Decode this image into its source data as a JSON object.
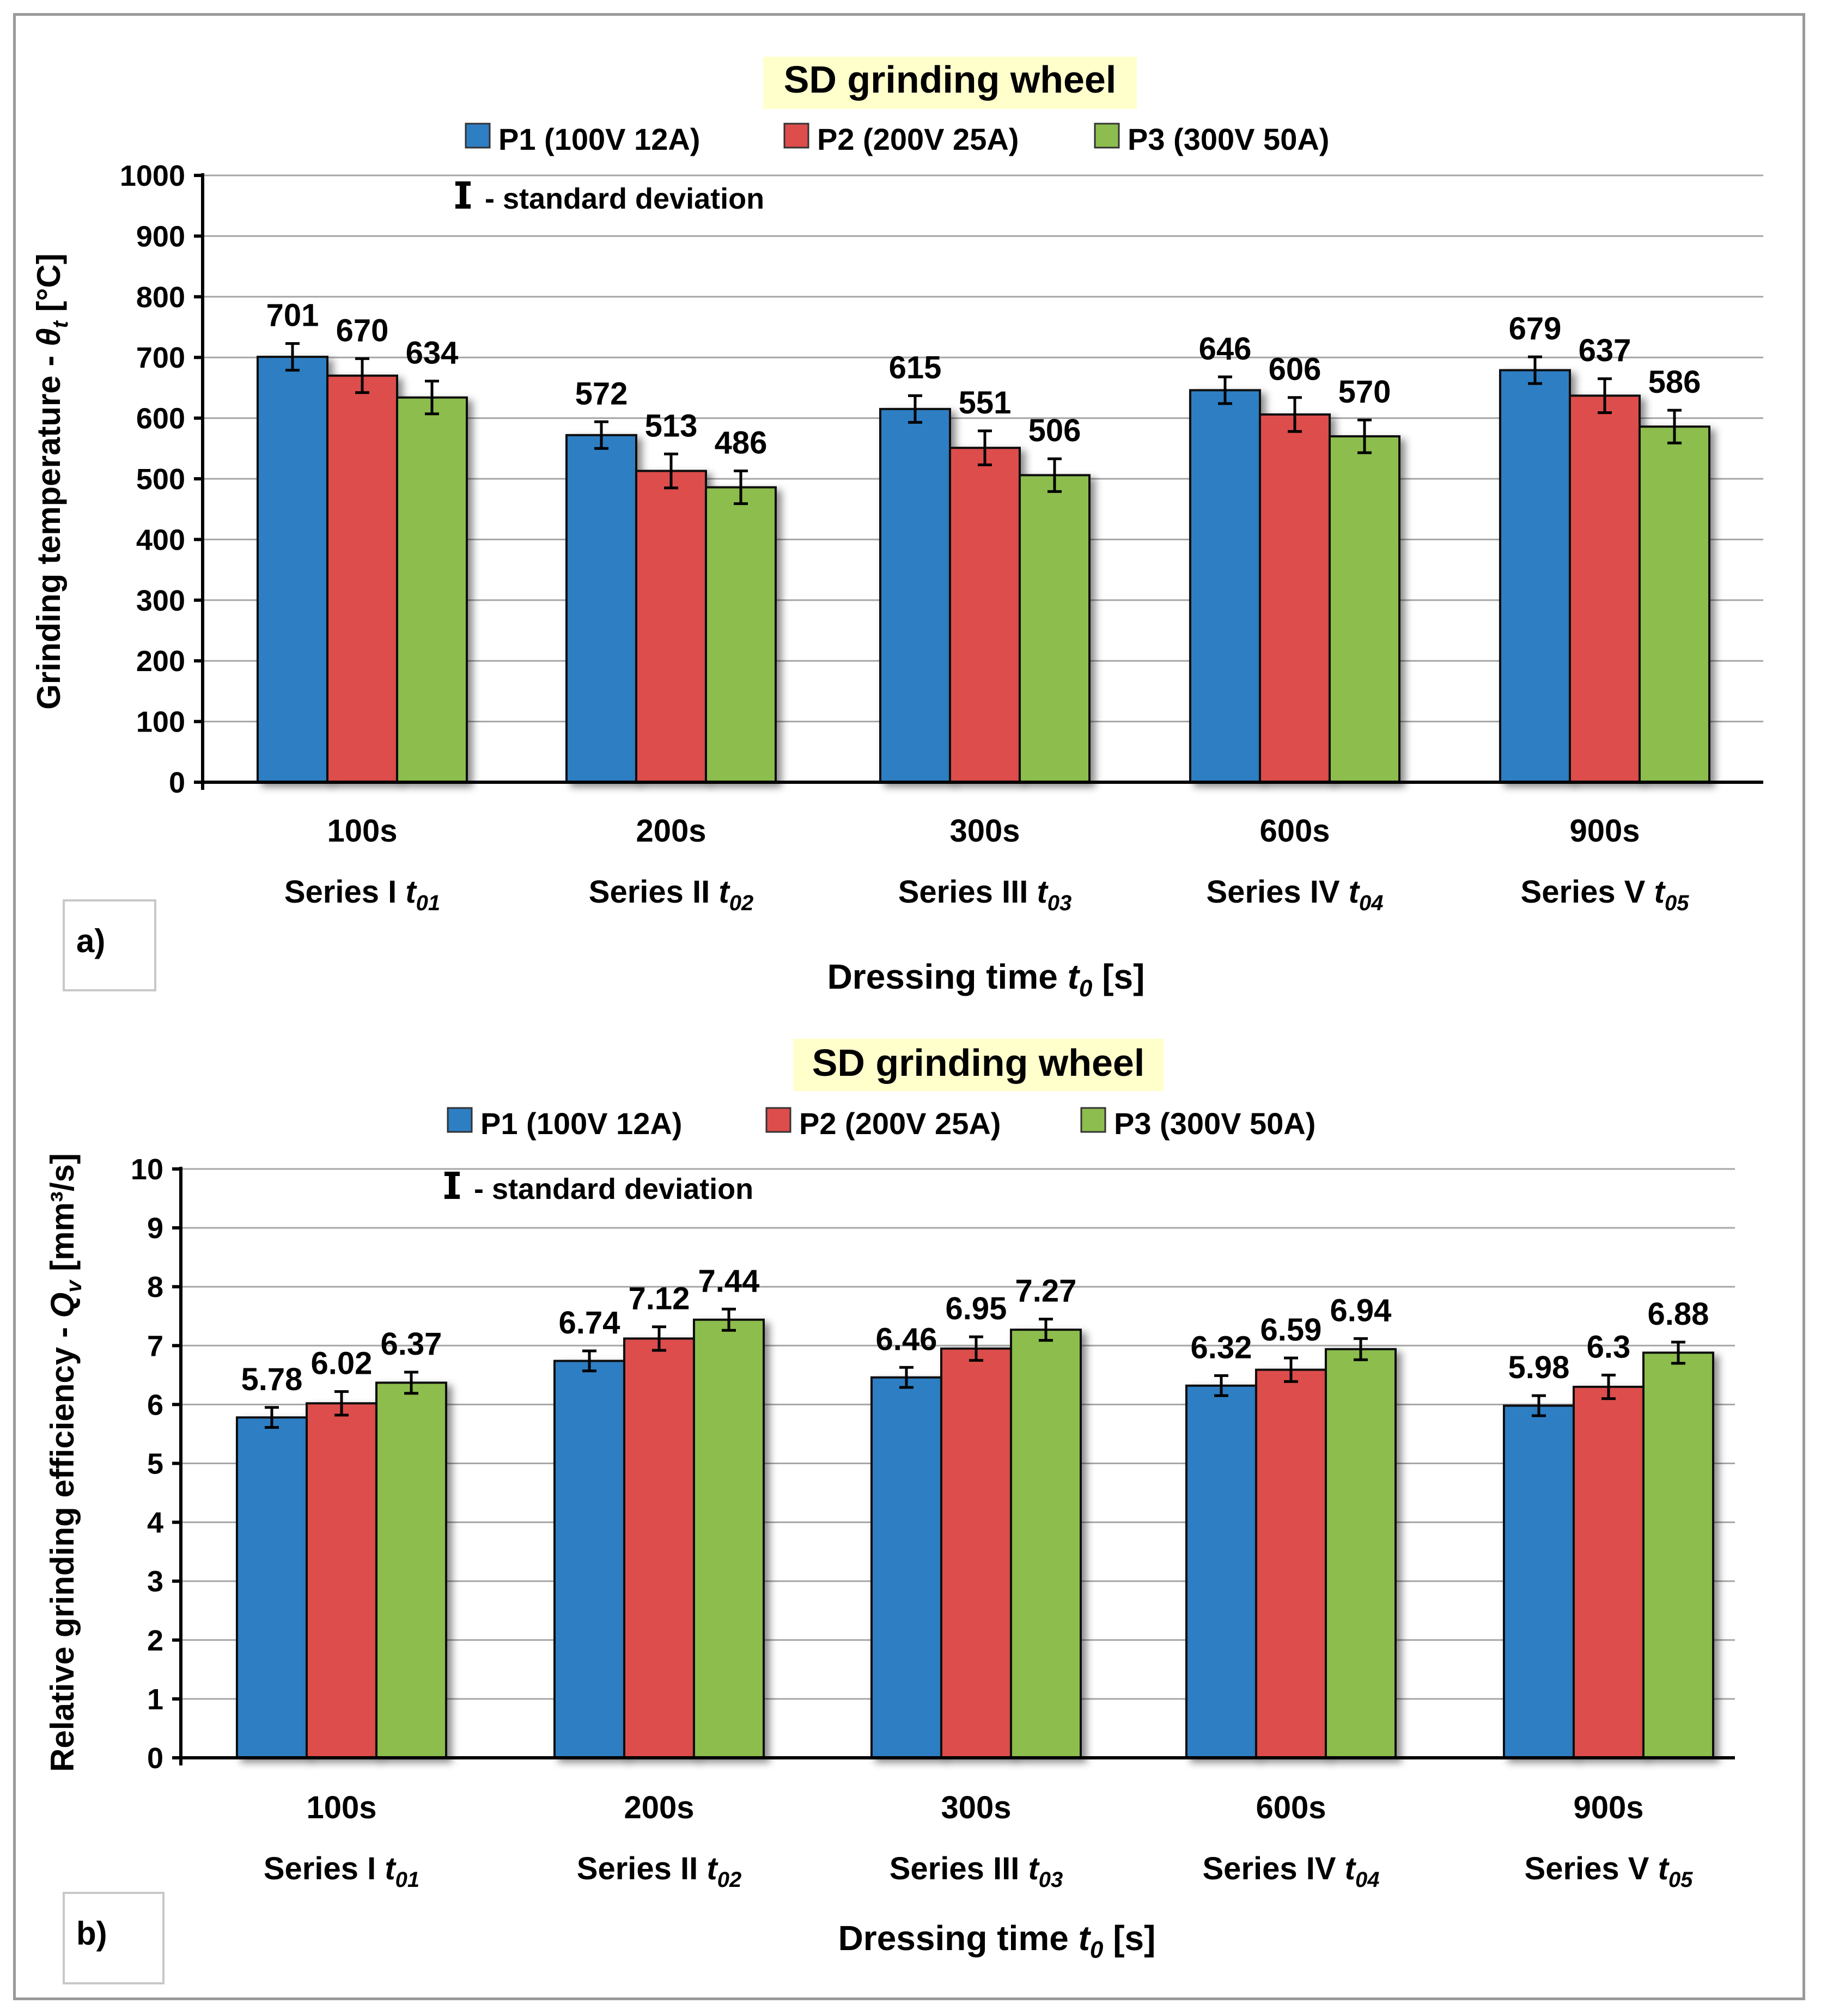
{
  "chart_data": [
    {
      "type": "bar",
      "panel_label": "a)",
      "title": "SD grinding wheel",
      "std_legend": "- standard deviation",
      "ylabel": "Grinding temperature - θt [°C]",
      "ylabel_parts": {
        "main": "Grinding temperature - ",
        "sym": "θ",
        "sub": "t",
        "post": " [°C]"
      },
      "xlabel_parts": {
        "main": "Dressing time ",
        "sym": "t",
        "sub": "0",
        "post": " [s]"
      },
      "ylim": [
        0,
        1000
      ],
      "yticks": [
        "0",
        "100",
        "200",
        "300",
        "400",
        "500",
        "600",
        "700",
        "800",
        "900",
        "1000"
      ],
      "grid": true,
      "categories": [
        {
          "top": "100s",
          "bottom": "Series I",
          "sym": "t",
          "sub": "01"
        },
        {
          "top": "200s",
          "bottom": "Series II",
          "sym": "t",
          "sub": "02"
        },
        {
          "top": "300s",
          "bottom": "Series III",
          "sym": "t",
          "sub": "03"
        },
        {
          "top": "600s",
          "bottom": "Series IV",
          "sym": "t",
          "sub": "04"
        },
        {
          "top": "900s",
          "bottom": "Series V",
          "sym": "t",
          "sub": "05"
        }
      ],
      "series": [
        {
          "name": "P1 (100V 12A)",
          "color": "#2e7ec3",
          "values": [
            701,
            572,
            615,
            646,
            679
          ],
          "labels": [
            "701",
            "572",
            "615",
            "646",
            "679"
          ]
        },
        {
          "name": "P2 (200V 25A)",
          "color": "#dd4d4b",
          "values": [
            670,
            513,
            551,
            606,
            637
          ],
          "labels": [
            "670",
            "513",
            "551",
            "606",
            "637"
          ]
        },
        {
          "name": "P3 (300V 50A)",
          "color": "#8cbd4e",
          "values": [
            634,
            486,
            506,
            570,
            586
          ],
          "labels": [
            "634",
            "486",
            "506",
            "570",
            "586"
          ]
        }
      ],
      "errors": [
        [
          22,
          22,
          22,
          22,
          22
        ],
        [
          28,
          28,
          28,
          28,
          28
        ],
        [
          27,
          27,
          27,
          27,
          27
        ]
      ]
    },
    {
      "type": "bar",
      "panel_label": "b)",
      "title": "SD grinding wheel",
      "std_legend": "- standard deviation",
      "ylabel": "Relative grinding efficiency - Qv [mm³/s]",
      "ylabel_parts": {
        "main": "Relative grinding efficiency - ",
        "sym": "Q",
        "sub": "v",
        "post": " [mm³/s]"
      },
      "xlabel_parts": {
        "main": "Dressing time ",
        "sym": "t",
        "sub": "0",
        "post": " [s]"
      },
      "ylim": [
        0,
        10
      ],
      "yticks": [
        "0",
        "1",
        "2",
        "3",
        "4",
        "5",
        "6",
        "7",
        "8",
        "9",
        "10"
      ],
      "grid": true,
      "categories": [
        {
          "top": "100s",
          "bottom": "Series I",
          "sym": "t",
          "sub": "01"
        },
        {
          "top": "200s",
          "bottom": "Series II",
          "sym": "t",
          "sub": "02"
        },
        {
          "top": "300s",
          "bottom": "Series III",
          "sym": "t",
          "sub": "03"
        },
        {
          "top": "600s",
          "bottom": "Series IV",
          "sym": "t",
          "sub": "04"
        },
        {
          "top": "900s",
          "bottom": "Series V",
          "sym": "t",
          "sub": "05"
        }
      ],
      "series": [
        {
          "name": "P1 (100V 12A)",
          "color": "#2e7ec3",
          "values": [
            5.78,
            6.74,
            6.46,
            6.32,
            5.98
          ],
          "labels": [
            "5.78",
            "6.74",
            "6.46",
            "6.32",
            "5.98"
          ]
        },
        {
          "name": "P2 (200V 25A)",
          "color": "#dd4d4b",
          "values": [
            6.02,
            7.12,
            6.95,
            6.59,
            6.3
          ],
          "labels": [
            "6.02",
            "7.12",
            "6.95",
            "6.59",
            "6.3"
          ]
        },
        {
          "name": "P3 (300V 50A)",
          "color": "#8cbd4e",
          "values": [
            6.37,
            7.44,
            7.27,
            6.94,
            6.88
          ],
          "labels": [
            "6.37",
            "7.44",
            "7.27",
            "6.94",
            "6.88"
          ]
        }
      ],
      "errors": [
        [
          0.17,
          0.17,
          0.17,
          0.17,
          0.17
        ],
        [
          0.2,
          0.2,
          0.2,
          0.2,
          0.2
        ],
        [
          0.18,
          0.18,
          0.18,
          0.18,
          0.18
        ]
      ]
    }
  ]
}
